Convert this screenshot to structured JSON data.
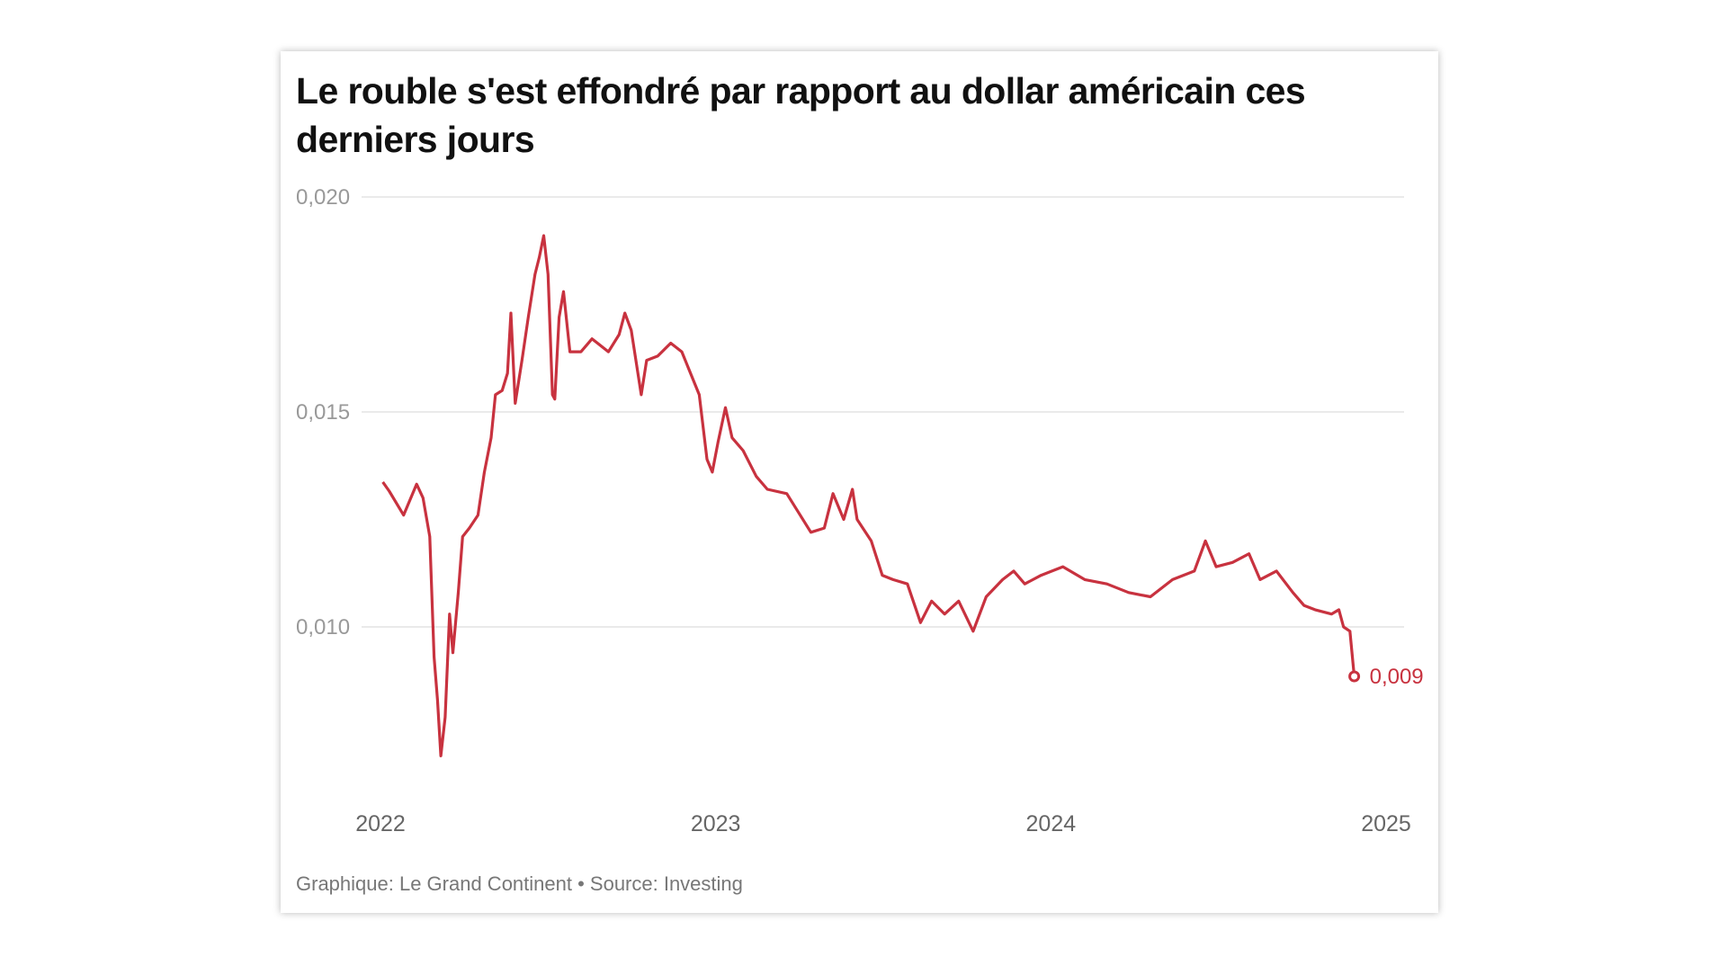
{
  "chart_data": {
    "type": "line",
    "title": "Le rouble s'est effondré par rapport au dollar américain ces derniers jours",
    "footer": "Graphique: Le Grand Continent • Source: Investing",
    "xlabel": "",
    "ylabel": "",
    "xlim": [
      2022,
      2025
    ],
    "ylim": [
      0.0065,
      0.02
    ],
    "grid": true,
    "color": "#c8323f",
    "x_ticks": [
      "2022",
      "2023",
      "2024",
      "2025"
    ],
    "y_ticks": [
      {
        "value": 0.02,
        "label": "0,020"
      },
      {
        "value": 0.015,
        "label": "0,015"
      },
      {
        "value": 0.01,
        "label": "0,010"
      }
    ],
    "end_label": "0,009",
    "series": [
      {
        "x": [
          2022.007,
          2022.026,
          2022.069,
          2022.108,
          2022.127,
          2022.147,
          2022.16,
          2022.17,
          2022.18,
          2022.193,
          2022.206,
          2022.216,
          2022.232,
          2022.245,
          2022.265,
          2022.291,
          2022.31,
          2022.33,
          2022.343,
          2022.363,
          2022.379,
          2022.389,
          2022.402,
          2022.422,
          2022.441,
          2022.461,
          2022.474,
          2022.487,
          2022.5,
          2022.513,
          2022.52,
          2022.533,
          2022.546,
          2022.565,
          2022.598,
          2022.631,
          2022.68,
          2022.712,
          2022.729,
          2022.748,
          2022.778,
          2022.794,
          2022.827,
          2022.866,
          2022.899,
          2022.925,
          2022.951,
          2022.974,
          2022.99,
          2023.007,
          2023.029,
          2023.049,
          2023.082,
          2023.121,
          2023.154,
          2023.212,
          2023.252,
          2023.284,
          2023.324,
          2023.35,
          2023.382,
          2023.408,
          2023.422,
          2023.464,
          2023.497,
          2023.529,
          2023.572,
          2023.611,
          2023.644,
          2023.683,
          2023.725,
          2023.768,
          2023.807,
          2023.856,
          2023.889,
          2023.922,
          2023.971,
          2024.036,
          2024.101,
          2024.167,
          2024.232,
          2024.297,
          2024.363,
          2024.428,
          2024.461,
          2024.493,
          2024.542,
          2024.591,
          2024.624,
          2024.673,
          2024.722,
          2024.755,
          2024.788,
          2024.837,
          2024.859,
          2024.873,
          2024.892,
          2024.905
        ],
        "y": [
          0.01337,
          0.01316,
          0.0126,
          0.01332,
          0.013,
          0.0121,
          0.0093,
          0.0083,
          0.007,
          0.0079,
          0.0103,
          0.0094,
          0.0108,
          0.0121,
          0.0123,
          0.0126,
          0.0136,
          0.0144,
          0.0154,
          0.0155,
          0.0159,
          0.0173,
          0.0152,
          0.0162,
          0.0172,
          0.0182,
          0.0186,
          0.0191,
          0.0182,
          0.0154,
          0.0153,
          0.0172,
          0.0178,
          0.0164,
          0.0164,
          0.0167,
          0.0164,
          0.0168,
          0.0173,
          0.0169,
          0.0154,
          0.0162,
          0.0163,
          0.0166,
          0.0164,
          0.0159,
          0.0154,
          0.0139,
          0.0136,
          0.0143,
          0.0151,
          0.0144,
          0.0141,
          0.0135,
          0.0132,
          0.0131,
          0.0126,
          0.0122,
          0.0123,
          0.0131,
          0.0125,
          0.0132,
          0.0125,
          0.012,
          0.0112,
          0.0111,
          0.011,
          0.0101,
          0.0106,
          0.0103,
          0.0106,
          0.0099,
          0.0107,
          0.0111,
          0.0113,
          0.011,
          0.0112,
          0.0114,
          0.0111,
          0.011,
          0.0108,
          0.0107,
          0.0111,
          0.0113,
          0.012,
          0.0114,
          0.0115,
          0.0117,
          0.0111,
          0.0113,
          0.0108,
          0.0105,
          0.0104,
          0.0103,
          0.0104,
          0.01,
          0.0099,
          0.00885
        ]
      }
    ]
  }
}
